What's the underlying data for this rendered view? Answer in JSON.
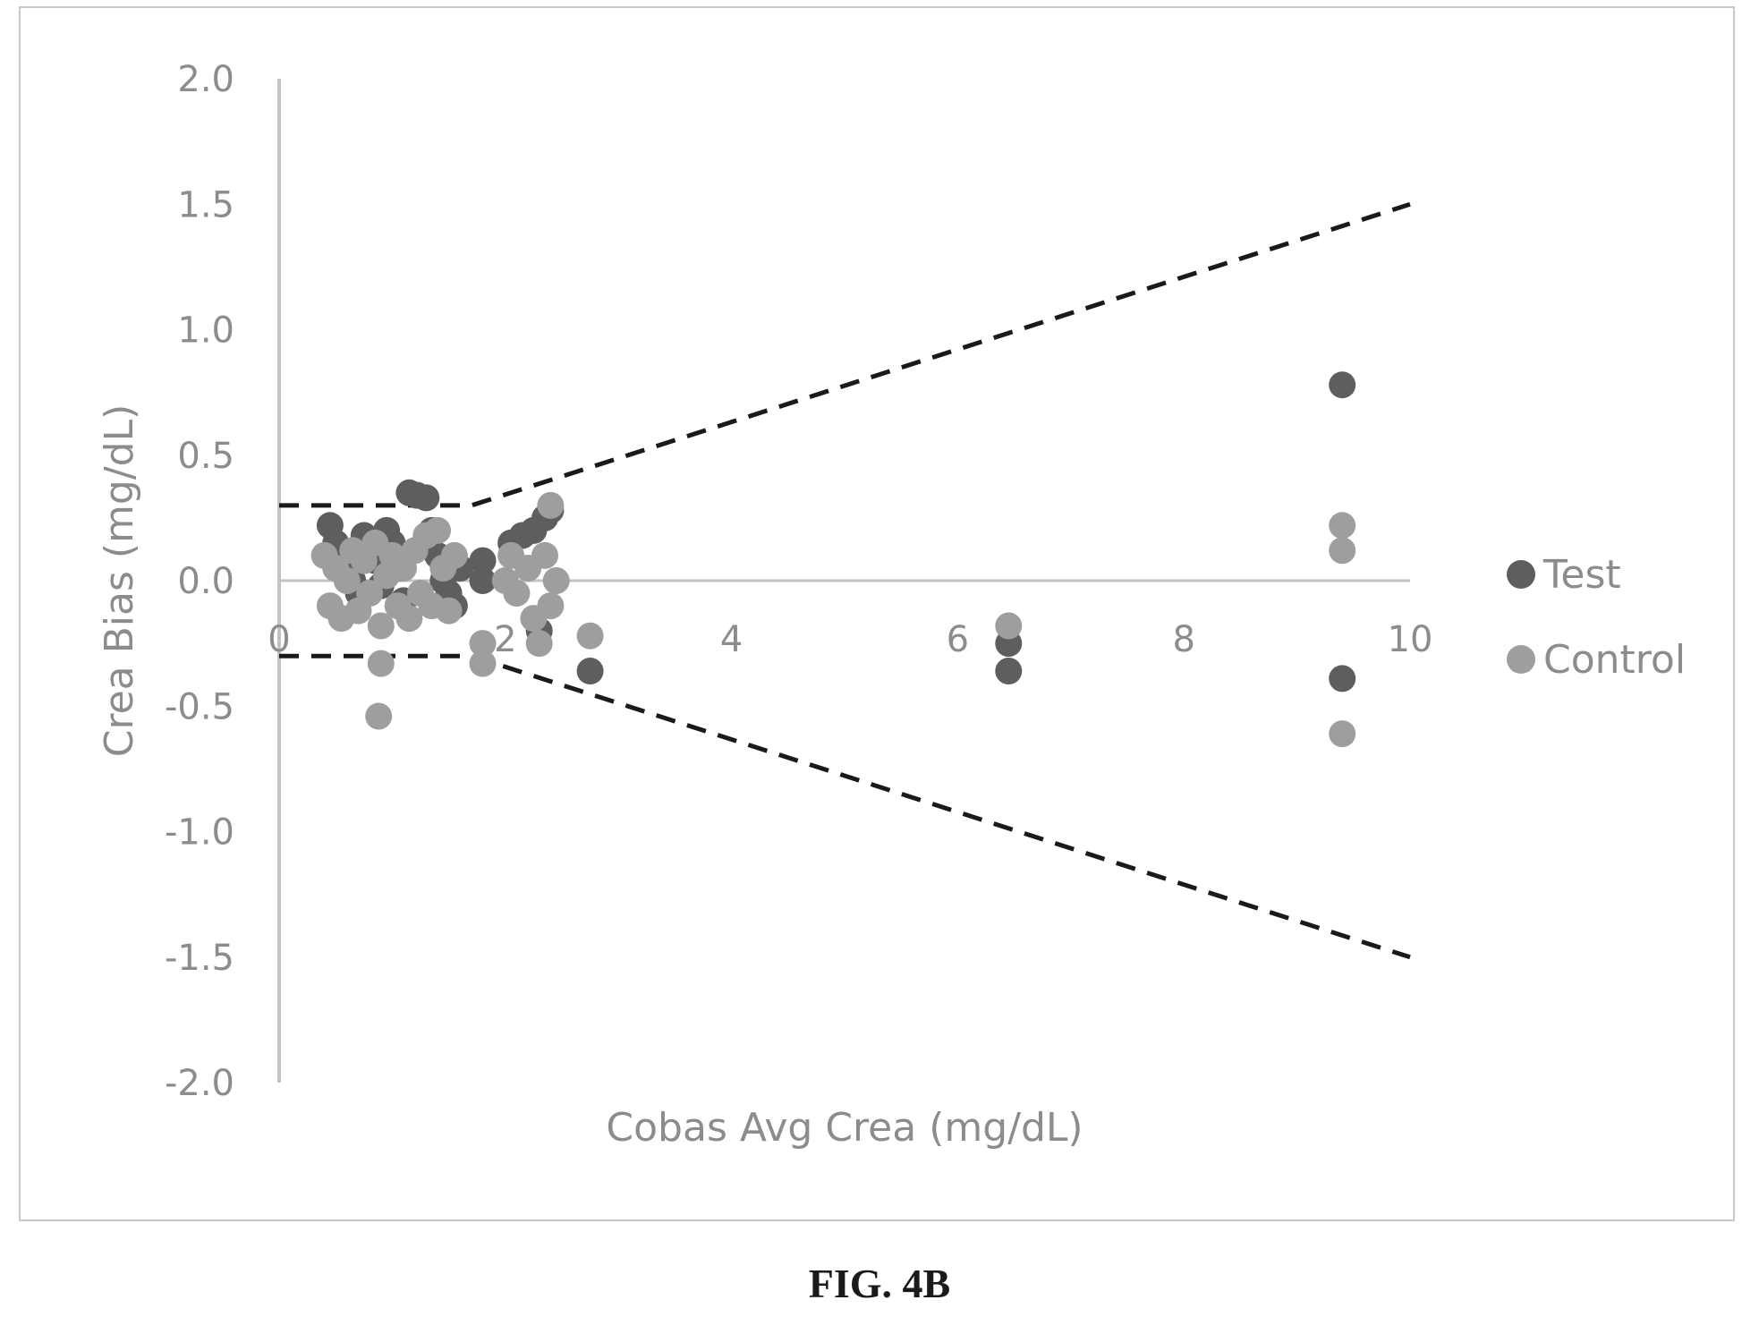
{
  "figure": {
    "caption": "FIG. 4B"
  },
  "chart_data": {
    "type": "scatter",
    "xlabel": "Cobas Avg Crea (mg/dL)",
    "ylabel": "Crea Bias (mg/dL)",
    "xlim": [
      0,
      10
    ],
    "ylim": [
      -2.0,
      2.0
    ],
    "x_ticks": [
      "0",
      "2",
      "4",
      "6",
      "8",
      "10"
    ],
    "y_ticks": [
      "2.0",
      "1.5",
      "1.0",
      "0.5",
      "0.0",
      "-0.5",
      "-1.0",
      "-1.5",
      "-2.0"
    ],
    "grid": false,
    "legend": {
      "position": "right"
    },
    "series": [
      {
        "name": "Test",
        "color": "#5e5e5e",
        "points": [
          [
            0.45,
            0.22
          ],
          [
            0.5,
            0.15
          ],
          [
            0.55,
            0.1
          ],
          [
            0.6,
            0.05
          ],
          [
            0.65,
            0.0
          ],
          [
            0.7,
            -0.05
          ],
          [
            0.75,
            0.18
          ],
          [
            0.8,
            0.12
          ],
          [
            0.85,
            0.08
          ],
          [
            0.9,
            -0.02
          ],
          [
            0.95,
            0.2
          ],
          [
            1.0,
            0.15
          ],
          [
            1.05,
            0.05
          ],
          [
            1.1,
            -0.08
          ],
          [
            1.15,
            0.35
          ],
          [
            1.22,
            0.34
          ],
          [
            1.3,
            0.33
          ],
          [
            1.35,
            0.2
          ],
          [
            1.4,
            0.1
          ],
          [
            1.45,
            0.0
          ],
          [
            1.5,
            -0.05
          ],
          [
            1.55,
            -0.1
          ],
          [
            1.6,
            0.05
          ],
          [
            1.8,
            0.08
          ],
          [
            1.8,
            0.0
          ],
          [
            2.05,
            0.15
          ],
          [
            2.15,
            0.18
          ],
          [
            2.25,
            0.2
          ],
          [
            2.35,
            0.25
          ],
          [
            2.4,
            0.28
          ],
          [
            2.3,
            -0.2
          ],
          [
            2.75,
            -0.36
          ],
          [
            6.45,
            -0.25
          ],
          [
            6.45,
            -0.36
          ],
          [
            9.4,
            0.78
          ],
          [
            9.4,
            -0.39
          ]
        ]
      },
      {
        "name": "Control",
        "color": "#9e9e9e",
        "points": [
          [
            0.4,
            0.1
          ],
          [
            0.45,
            -0.1
          ],
          [
            0.5,
            0.05
          ],
          [
            0.55,
            -0.15
          ],
          [
            0.6,
            0.0
          ],
          [
            0.65,
            0.12
          ],
          [
            0.7,
            -0.12
          ],
          [
            0.75,
            0.08
          ],
          [
            0.8,
            -0.05
          ],
          [
            0.85,
            0.15
          ],
          [
            0.9,
            -0.18
          ],
          [
            0.95,
            0.02
          ],
          [
            1.0,
            0.1
          ],
          [
            1.05,
            -0.1
          ],
          [
            1.1,
            0.05
          ],
          [
            1.15,
            -0.15
          ],
          [
            1.2,
            0.12
          ],
          [
            1.25,
            -0.05
          ],
          [
            1.3,
            0.18
          ],
          [
            1.35,
            -0.1
          ],
          [
            1.4,
            0.2
          ],
          [
            1.45,
            0.05
          ],
          [
            1.5,
            -0.12
          ],
          [
            1.55,
            0.1
          ],
          [
            0.9,
            -0.33
          ],
          [
            0.88,
            -0.54
          ],
          [
            1.8,
            -0.25
          ],
          [
            1.8,
            -0.33
          ],
          [
            2.0,
            0.0
          ],
          [
            2.05,
            0.1
          ],
          [
            2.1,
            -0.05
          ],
          [
            2.2,
            0.05
          ],
          [
            2.25,
            -0.15
          ],
          [
            2.3,
            -0.25
          ],
          [
            2.35,
            0.1
          ],
          [
            2.4,
            0.3
          ],
          [
            2.45,
            0.0
          ],
          [
            2.4,
            -0.1
          ],
          [
            2.75,
            -0.22
          ],
          [
            6.45,
            -0.18
          ],
          [
            9.4,
            0.22
          ],
          [
            9.4,
            0.12
          ],
          [
            9.4,
            -0.61
          ]
        ]
      }
    ],
    "limit_lines": {
      "style": "dashed",
      "color": "#1a1a1a",
      "upper": [
        [
          0,
          0.3
        ],
        [
          1.7,
          0.3
        ],
        [
          10,
          1.5
        ]
      ],
      "lower": [
        [
          0,
          -0.3
        ],
        [
          1.7,
          -0.3
        ],
        [
          10,
          -1.5
        ]
      ]
    }
  }
}
